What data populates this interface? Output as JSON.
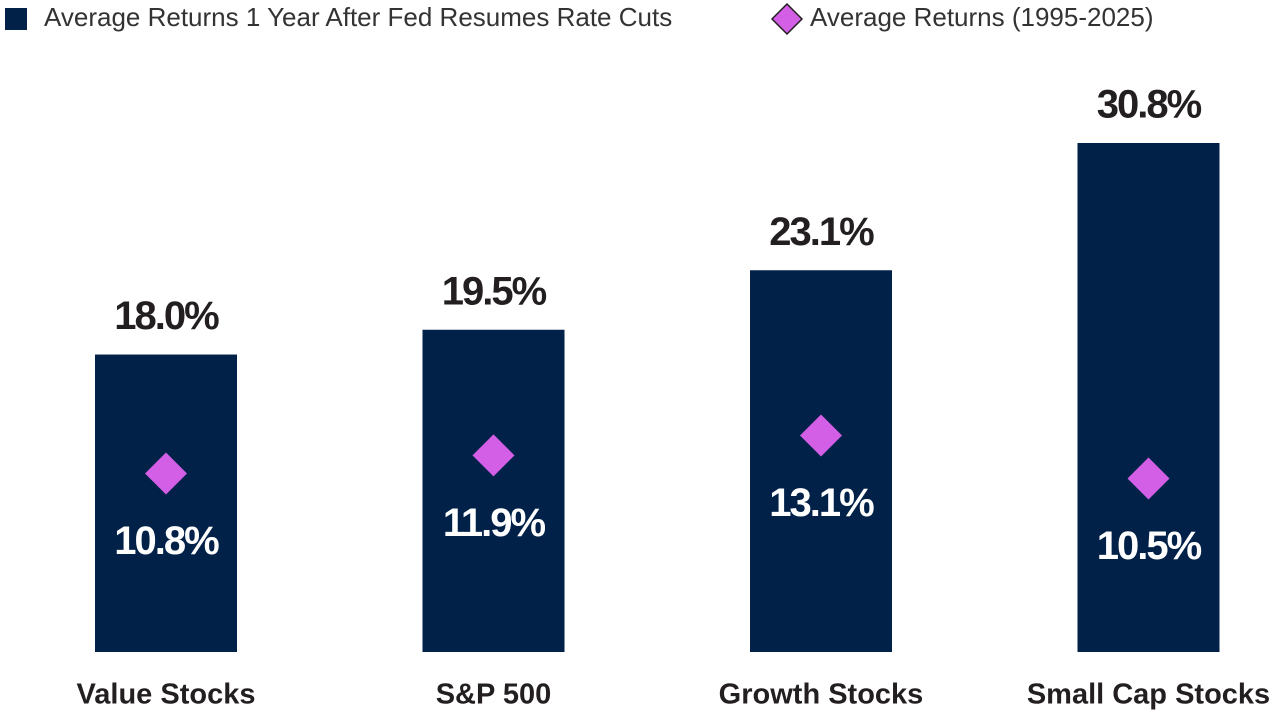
{
  "chart_data": {
    "type": "bar",
    "categories": [
      "Value Stocks",
      "S&P 500",
      "Growth Stocks",
      "Small Cap Stocks"
    ],
    "series": [
      {
        "name": "Average Returns 1 Year After Fed Resumes Rate Cuts",
        "color": "#022148",
        "type": "bar",
        "values": [
          18.0,
          19.5,
          23.1,
          30.8
        ],
        "value_labels": [
          "18.0%",
          "19.5%",
          "23.1%",
          "30.8%"
        ]
      },
      {
        "name": "Average Returns (1995-2025)",
        "color": "#d35fe6",
        "type": "scatter",
        "marker": "diamond",
        "values": [
          10.8,
          11.9,
          13.1,
          10.5
        ],
        "value_labels": [
          "10.8%",
          "11.9%",
          "13.1%",
          "10.5%"
        ]
      }
    ]
  }
}
